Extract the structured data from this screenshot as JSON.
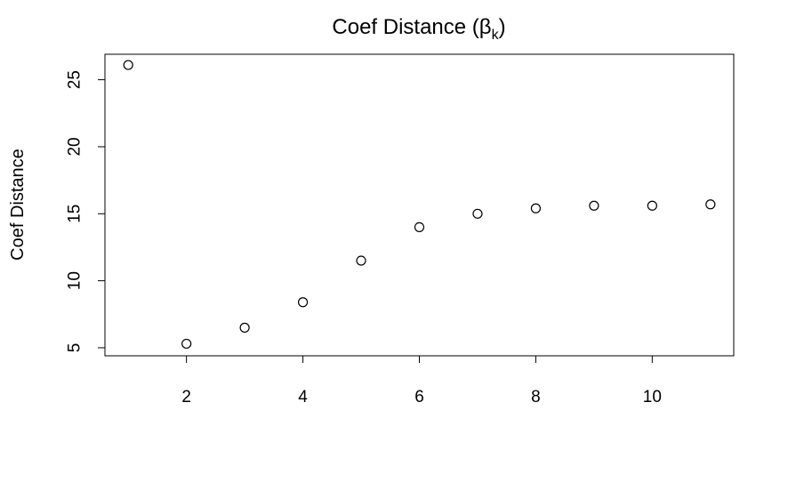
{
  "chart_data": {
    "type": "scatter",
    "title": {
      "main": "Coef Distance (β",
      "subscript": "k",
      "close": ")"
    },
    "xlabel": "",
    "ylabel": "Coef Distance",
    "x": [
      1,
      2,
      3,
      4,
      5,
      6,
      7,
      8,
      9,
      10,
      11
    ],
    "y": [
      26.1,
      5.3,
      6.5,
      8.4,
      11.5,
      14.0,
      15.0,
      15.4,
      15.6,
      15.6,
      15.7
    ],
    "xlim": [
      0.6,
      11.4
    ],
    "ylim": [
      4.4,
      26.9
    ],
    "x_ticks": [
      2,
      4,
      6,
      8,
      10
    ],
    "y_ticks": [
      5,
      10,
      15,
      20,
      25
    ],
    "grid": false,
    "legend": "none",
    "marker": "open-circle",
    "colors": {
      "points": "#000000",
      "axes": "#000000",
      "background": "#ffffff"
    }
  }
}
